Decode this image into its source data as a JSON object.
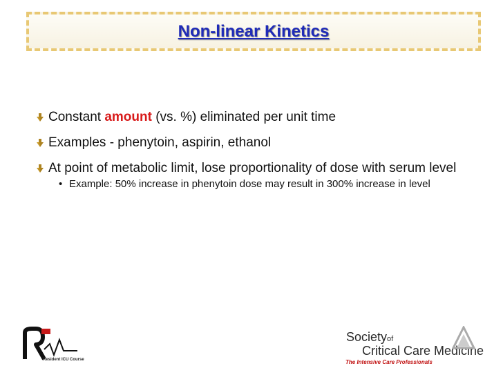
{
  "slide": {
    "title": "Non-linear Kinetics",
    "bullets": [
      {
        "before": "Constant ",
        "emphasis": "amount",
        "after": " (vs. %) eliminated per unit time"
      },
      {
        "text": "Examples - phenytoin, aspirin, ethanol"
      },
      {
        "text": "At point of metabolic limit, lose proportionality of dose with serum level"
      }
    ],
    "sub_bullets": [
      {
        "text": "Example: 50% increase in phenytoin dose may result in 300% increase in level"
      }
    ]
  },
  "footer": {
    "left_logo": {
      "name": "ricu-logo",
      "caption": "Resident ICU Course"
    },
    "right_logo": {
      "name": "sccm-logo",
      "society": "Society",
      "of": "of",
      "org_name": "Critical Care Medicine",
      "tagline": "The Intensive Care Professionals"
    }
  },
  "colors": {
    "title": "#1f2bb8",
    "emphasis": "#d81a1a",
    "title_border": "#e8c874",
    "tagline": "#c01010"
  }
}
